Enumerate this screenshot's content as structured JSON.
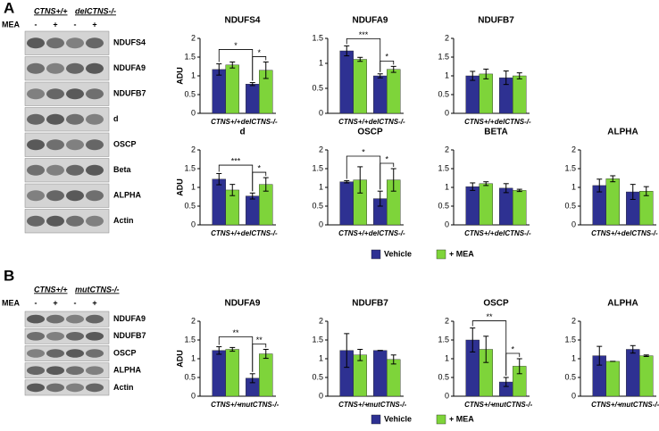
{
  "blots": [
    {
      "label": "A",
      "genotypes": [
        "CTNS+/+",
        "delCTNS-/-"
      ],
      "treatment": "MEA",
      "lanes": [
        "-",
        "+",
        "-",
        "+"
      ],
      "proteins": [
        "NDUFS4",
        "NDUFA9",
        "NDUFB7",
        "d",
        "OSCP",
        "Beta",
        "ALPHA",
        "Actin"
      ]
    },
    {
      "label": "B",
      "genotypes": [
        "CTNS+/+",
        "mutCTNS-/-"
      ],
      "treatment": "MEA",
      "lanes": [
        "-",
        "+",
        "-",
        "+"
      ],
      "proteins": [
        "NDUFA9",
        "NDUFB7",
        "OSCP",
        "ALPHA",
        "Actin"
      ]
    }
  ],
  "chart_data": [
    {
      "type": "bar",
      "title": "NDUFS4",
      "ylabel": "ADU",
      "categories": [
        "CTNS+/+",
        "delCTNS-/-"
      ],
      "series": [
        {
          "name": "Vehicle",
          "color": "#2e3192",
          "values": [
            1.17,
            0.78
          ],
          "errors": [
            0.15,
            0.04
          ]
        },
        {
          "name": "+ MEA",
          "color": "#7ed43a",
          "values": [
            1.29,
            1.15
          ],
          "errors": [
            0.08,
            0.22
          ]
        }
      ],
      "ylim": [
        0,
        2
      ],
      "yticks": [
        0,
        0.5,
        1,
        1.5,
        2
      ],
      "annotations": [
        {
          "text": "*"
        },
        {
          "text": "*"
        }
      ]
    },
    {
      "type": "bar",
      "title": "NDUFA9",
      "categories": [
        "CTNS+/+",
        "delCTNS-/-"
      ],
      "series": [
        {
          "name": "Vehicle",
          "color": "#2e3192",
          "values": [
            1.25,
            0.75
          ],
          "errors": [
            0.1,
            0.04
          ]
        },
        {
          "name": "+ MEA",
          "color": "#7ed43a",
          "values": [
            1.08,
            0.88
          ],
          "errors": [
            0.04,
            0.06
          ]
        }
      ],
      "ylim": [
        0,
        1.5
      ],
      "yticks": [
        0,
        0.5,
        1,
        1.5
      ],
      "annotations": [
        {
          "text": "***"
        },
        {
          "text": "*"
        }
      ]
    },
    {
      "type": "bar",
      "title": "NDUFB7",
      "categories": [
        "CTNS+/+",
        "delCTNS-/-"
      ],
      "series": [
        {
          "name": "Vehicle",
          "color": "#2e3192",
          "values": [
            1.0,
            0.95
          ],
          "errors": [
            0.12,
            0.18
          ]
        },
        {
          "name": "+ MEA",
          "color": "#7ed43a",
          "values": [
            1.05,
            1.0
          ],
          "errors": [
            0.13,
            0.08
          ]
        }
      ],
      "ylim": [
        0,
        2
      ],
      "yticks": [
        0,
        0.5,
        1,
        1.5,
        2
      ],
      "annotations": []
    },
    {
      "type": "bar",
      "title": "d",
      "ylabel": "ADU",
      "categories": [
        "CTNS+/+",
        "delCTNS-/-"
      ],
      "series": [
        {
          "name": "Vehicle",
          "color": "#2e3192",
          "values": [
            1.22,
            0.77
          ],
          "errors": [
            0.15,
            0.08
          ]
        },
        {
          "name": "+ MEA",
          "color": "#7ed43a",
          "values": [
            0.93,
            1.08
          ],
          "errors": [
            0.15,
            0.18
          ]
        }
      ],
      "ylim": [
        0,
        2
      ],
      "yticks": [
        0,
        0.5,
        1,
        1.5,
        2
      ],
      "annotations": [
        {
          "text": "***"
        },
        {
          "text": "*"
        }
      ]
    },
    {
      "type": "bar",
      "title": "OSCP",
      "categories": [
        "CTNS+/+",
        "delCTNS-/-"
      ],
      "series": [
        {
          "name": "Vehicle",
          "color": "#2e3192",
          "values": [
            1.15,
            0.7
          ],
          "errors": [
            0.03,
            0.2
          ]
        },
        {
          "name": "+ MEA",
          "color": "#7ed43a",
          "values": [
            1.2,
            1.2
          ],
          "errors": [
            0.35,
            0.3
          ]
        }
      ],
      "ylim": [
        0,
        2
      ],
      "yticks": [
        0,
        0.5,
        1,
        1.5,
        2
      ],
      "annotations": [
        {
          "text": "*"
        },
        {
          "text": "*"
        }
      ]
    },
    {
      "type": "bar",
      "title": "BETA",
      "categories": [
        "CTNS+/+",
        "delCTNS-/-"
      ],
      "series": [
        {
          "name": "Vehicle",
          "color": "#2e3192",
          "values": [
            1.02,
            0.98
          ],
          "errors": [
            0.1,
            0.12
          ]
        },
        {
          "name": "+ MEA",
          "color": "#7ed43a",
          "values": [
            1.1,
            0.92
          ],
          "errors": [
            0.05,
            0.03
          ]
        }
      ],
      "ylim": [
        0,
        2
      ],
      "yticks": [
        0,
        0.5,
        1,
        1.5,
        2
      ],
      "annotations": []
    },
    {
      "type": "bar",
      "title": "ALPHA",
      "categories": [
        "CTNS+/+",
        "delCTNS-/-"
      ],
      "series": [
        {
          "name": "Vehicle",
          "color": "#2e3192",
          "values": [
            1.05,
            0.88
          ],
          "errors": [
            0.17,
            0.2
          ]
        },
        {
          "name": "+ MEA",
          "color": "#7ed43a",
          "values": [
            1.23,
            0.9
          ],
          "errors": [
            0.08,
            0.12
          ]
        }
      ],
      "ylim": [
        0,
        2
      ],
      "yticks": [
        0,
        0.5,
        1,
        1.5,
        2
      ],
      "annotations": []
    },
    {
      "type": "bar",
      "title": "NDUFA9",
      "ylabel": "ADU",
      "categories": [
        "CTNS+/+",
        "mutCTNS-/-"
      ],
      "series": [
        {
          "name": "Vehicle",
          "color": "#2e3192",
          "values": [
            1.22,
            0.48
          ],
          "errors": [
            0.1,
            0.12
          ]
        },
        {
          "name": "+ MEA",
          "color": "#7ed43a",
          "values": [
            1.25,
            1.13
          ],
          "errors": [
            0.05,
            0.12
          ]
        }
      ],
      "ylim": [
        0,
        2
      ],
      "yticks": [
        0,
        0.5,
        1,
        1.5,
        2
      ],
      "annotations": [
        {
          "text": "**"
        },
        {
          "text": "**"
        }
      ]
    },
    {
      "type": "bar",
      "title": "NDUFB7",
      "categories": [
        "CTNS+/+",
        "mutCTNS-/-"
      ],
      "series": [
        {
          "name": "Vehicle",
          "color": "#2e3192",
          "values": [
            1.22,
            1.22
          ],
          "errors": [
            0.45,
            0
          ]
        },
        {
          "name": "+ MEA",
          "color": "#7ed43a",
          "values": [
            1.1,
            0.98
          ],
          "errors": [
            0.15,
            0.12
          ]
        }
      ],
      "ylim": [
        0,
        2
      ],
      "yticks": [
        0,
        0.5,
        1,
        1.5,
        2
      ],
      "annotations": []
    },
    {
      "type": "bar",
      "title": "OSCP",
      "categories": [
        "CTNS+/+",
        "mutCTNS-/-"
      ],
      "series": [
        {
          "name": "Vehicle",
          "color": "#2e3192",
          "values": [
            1.5,
            0.38
          ],
          "errors": [
            0.32,
            0.12
          ]
        },
        {
          "name": "+ MEA",
          "color": "#7ed43a",
          "values": [
            1.25,
            0.8
          ],
          "errors": [
            0.35,
            0.2
          ]
        }
      ],
      "ylim": [
        0,
        2
      ],
      "yticks": [
        0,
        0.5,
        1,
        1.5,
        2
      ],
      "annotations": [
        {
          "text": "**"
        },
        {
          "text": "*"
        }
      ]
    },
    {
      "type": "bar",
      "title": "ALPHA",
      "categories": [
        "CTNS+/+",
        "mutCTNS-/-"
      ],
      "series": [
        {
          "name": "Vehicle",
          "color": "#2e3192",
          "values": [
            1.08,
            1.25
          ],
          "errors": [
            0.25,
            0.1
          ]
        },
        {
          "name": "+ MEA",
          "color": "#7ed43a",
          "values": [
            0.93,
            1.08
          ],
          "errors": [
            0,
            0.02
          ]
        }
      ],
      "ylim": [
        0,
        2
      ],
      "yticks": [
        0,
        0.5,
        1,
        1.5,
        2
      ],
      "annotations": []
    }
  ]
}
